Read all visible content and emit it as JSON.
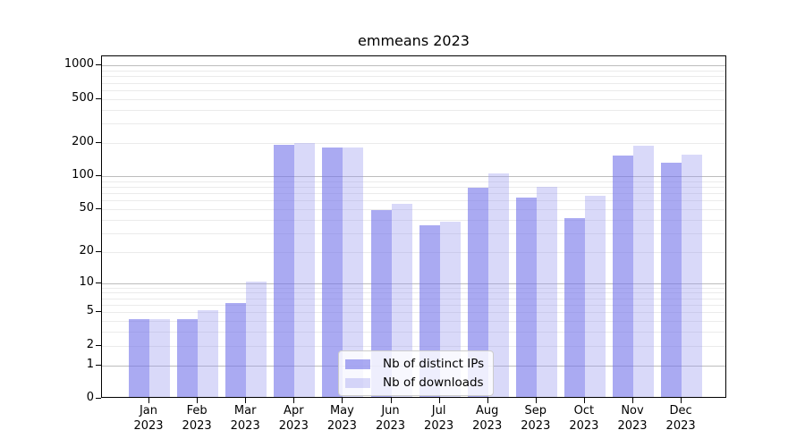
{
  "title": "emmeans 2023",
  "chart_data": {
    "type": "bar",
    "title": "emmeans 2023",
    "subtitle": "",
    "xlabel": "",
    "ylabel": "",
    "categories": [
      {
        "month": "Jan",
        "year": "2023"
      },
      {
        "month": "Feb",
        "year": "2023"
      },
      {
        "month": "Mar",
        "year": "2023"
      },
      {
        "month": "Apr",
        "year": "2023"
      },
      {
        "month": "May",
        "year": "2023"
      },
      {
        "month": "Jun",
        "year": "2023"
      },
      {
        "month": "Jul",
        "year": "2023"
      },
      {
        "month": "Aug",
        "year": "2023"
      },
      {
        "month": "Sep",
        "year": "2023"
      },
      {
        "month": "Oct",
        "year": "2023"
      },
      {
        "month": "Nov",
        "year": "2023"
      },
      {
        "month": "Dec",
        "year": "2023"
      }
    ],
    "series": [
      {
        "name": "Nb of distinct IPs",
        "color": "rgba(113,113,234,0.60)",
        "values": [
          4,
          4,
          6,
          186,
          175,
          47,
          34,
          76,
          61,
          40,
          149,
          128
        ]
      },
      {
        "name": "Nb of downloads",
        "color": "rgba(151,151,240,0.37)",
        "values": [
          4,
          5,
          10,
          193,
          175,
          54,
          37,
          102,
          77,
          64,
          183,
          152
        ]
      }
    ],
    "y_axis": {
      "scale": "log10(1+x)",
      "tick_values": [
        0,
        1,
        2,
        5,
        10,
        20,
        50,
        100,
        200,
        500,
        1000
      ],
      "major_grid_values": [
        1,
        10,
        100,
        1000
      ],
      "minor_grid_values": [
        2,
        3,
        4,
        5,
        6,
        7,
        8,
        9,
        20,
        30,
        40,
        50,
        60,
        70,
        80,
        90,
        200,
        300,
        400,
        500,
        600,
        700,
        800,
        900
      ],
      "ylim_top": 1210
    },
    "legend": {
      "position": "inside-bottom-center",
      "entries": [
        "Nb of distinct IPs",
        "Nb of downloads"
      ]
    },
    "colors": {
      "major_grid": "#bdbdbd",
      "minor_grid": "#ebebeb",
      "axis": "#000000",
      "legend_border": "#cccccc"
    }
  }
}
